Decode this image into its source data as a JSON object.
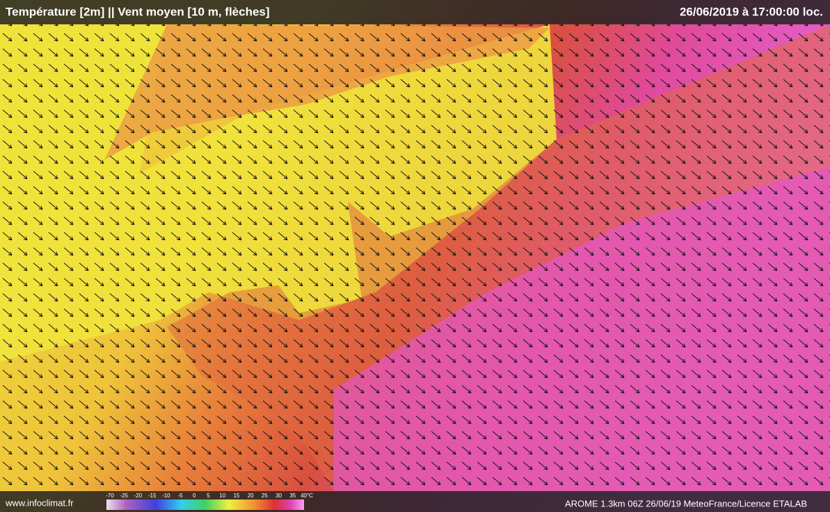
{
  "header": {
    "title": "Température [2m] || Vent moyen [10 m, flèches]",
    "timestamp": "26/06/2019 à 17:00:00 loc."
  },
  "footer": {
    "site": "www.infoclimat.fr",
    "credit": "AROME 1.3km 06Z 26/06/19 MeteoFrance/Licence ETALAB"
  },
  "legend": {
    "labels": [
      "-70",
      "-25",
      "-20",
      "-15",
      "-10",
      "-5",
      "0",
      "5",
      "10",
      "15",
      "20",
      "25",
      "30",
      "35",
      "40°C"
    ]
  }
}
